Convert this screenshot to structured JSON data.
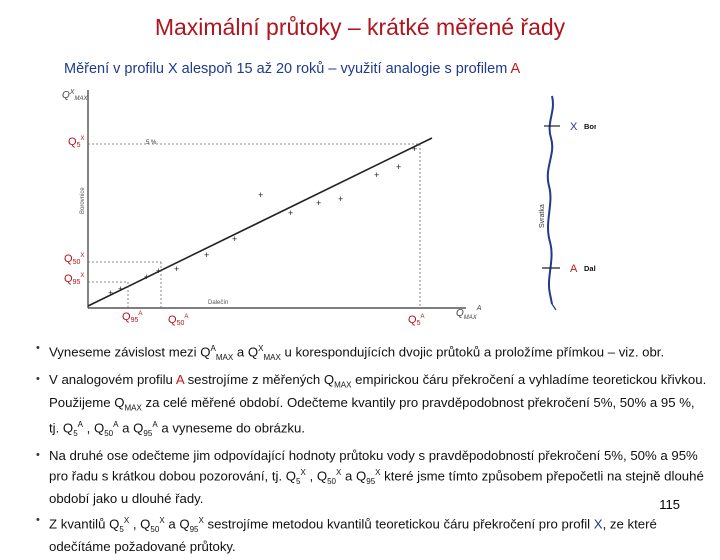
{
  "slide": {
    "title": "Maximální průtoky – krátké měřené řady",
    "subtitle_pre": "Měření  v profilu X alespoň 15 až 20 roků – využití analogie s profilem ",
    "subtitle_a": "A",
    "page_number": "115"
  },
  "figure": {
    "y_axis_label": "Q MAX X",
    "y_ticks": [
      "Q5X",
      "Q50X",
      "Q95X"
    ],
    "y_axis_vertical_text": "Borovnice",
    "x_axis_text": "Dalečín",
    "x_axis_label": "Q MAX A",
    "x_ticks": [
      "Q5A",
      "Q50A",
      "Q95A"
    ],
    "five_percent_label": "5 %",
    "river_label": "Svratka",
    "station_x_letter": "X",
    "station_x_name": "Borovnice",
    "station_a_letter": "A",
    "station_a_name": "Dalečín"
  },
  "bullets": [
    {
      "text": "Vyneseme závislost mezi QAMAX a QXMAX u korespondujících dvojic průtoků a proložíme přímkou – viz. obr."
    },
    {
      "pre": "V analogovém profilu ",
      "red": "A",
      "post": " sestrojíme z měřených QMAX empirickou čáru překročení a vyhladíme teoretickou křivkou. Použijeme QMAX za celé měřené období. Odečteme kvantily pro pravděpodobnost překročení 5%, 50% a 95 %, tj. Q5A , Q50A a Q95A a vyneseme do obrázku."
    },
    {
      "text": "Na druhé ose odečteme jim odpovídající hodnoty průtoku vody s pravděpodobností překročení 5%, 50% a 95% pro řadu s krátkou dobou pozorování, tj. Q5X , Q50X a Q95X  které jsme tímto způsobem přepočetli na stejně dlouhé období jako u dlouhé řady."
    },
    {
      "pre": "Z kvantilů Q5X , Q50X a Q95X sestrojíme metodou kvantilů teoretickou čáru překročení pro profil ",
      "blue": "X",
      "post": ", ze které odečítáme požadované průtoky."
    }
  ]
}
